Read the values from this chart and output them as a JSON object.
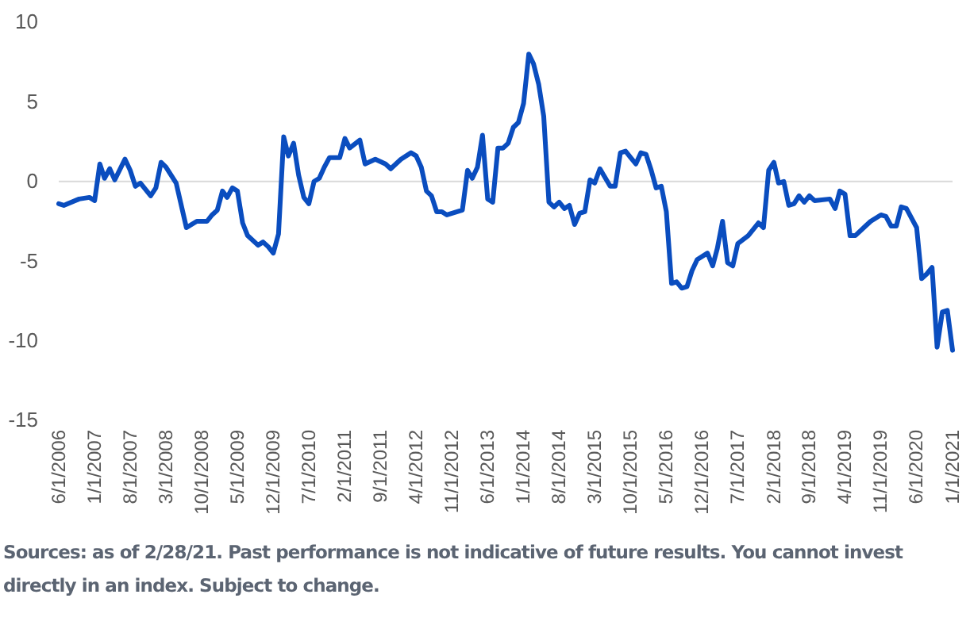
{
  "chart_data": {
    "type": "line",
    "x": [
      "2006-06",
      "2006-07",
      "2006-10",
      "2006-12",
      "2007-01",
      "2007-02",
      "2007-03",
      "2007-04",
      "2007-05",
      "2007-07",
      "2007-08",
      "2007-09",
      "2007-10",
      "2007-12",
      "2008-01",
      "2008-02",
      "2008-03",
      "2008-05",
      "2008-07",
      "2008-08",
      "2008-09",
      "2008-11",
      "2008-12",
      "2009-01",
      "2009-02",
      "2009-03",
      "2009-04",
      "2009-05",
      "2009-06",
      "2009-07",
      "2009-09",
      "2009-10",
      "2009-11",
      "2009-12",
      "2010-01",
      "2010-02",
      "2010-03",
      "2010-04",
      "2010-05",
      "2010-06",
      "2010-07",
      "2010-08",
      "2010-09",
      "2010-10",
      "2010-11",
      "2011-01",
      "2011-02",
      "2011-03",
      "2011-05",
      "2011-06",
      "2011-08",
      "2011-10",
      "2011-11",
      "2012-01",
      "2012-03",
      "2012-04",
      "2012-05",
      "2012-06",
      "2012-07",
      "2012-08",
      "2012-09",
      "2012-10",
      "2013-01",
      "2013-02",
      "2013-03",
      "2013-04",
      "2013-05",
      "2013-06",
      "2013-07",
      "2013-08",
      "2013-09",
      "2013-10",
      "2013-11",
      "2013-12",
      "2014-01",
      "2014-02",
      "2014-03",
      "2014-04",
      "2014-05",
      "2014-06",
      "2014-07",
      "2014-08",
      "2014-09",
      "2014-10",
      "2014-11",
      "2014-12",
      "2015-01",
      "2015-02",
      "2015-03",
      "2015-04",
      "2015-06",
      "2015-07",
      "2015-08",
      "2015-09",
      "2015-10",
      "2015-11",
      "2015-12",
      "2016-01",
      "2016-02",
      "2016-03",
      "2016-04",
      "2016-05",
      "2016-06",
      "2016-07",
      "2016-08",
      "2016-09",
      "2016-10",
      "2016-11",
      "2017-01",
      "2017-02",
      "2017-03",
      "2017-04",
      "2017-05",
      "2017-06",
      "2017-07",
      "2017-09",
      "2017-11",
      "2017-12",
      "2018-01",
      "2018-02",
      "2018-03",
      "2018-04",
      "2018-05",
      "2018-06",
      "2018-07",
      "2018-08",
      "2018-09",
      "2018-10",
      "2019-01",
      "2019-02",
      "2019-03",
      "2019-04",
      "2019-05",
      "2019-06",
      "2019-08",
      "2019-09",
      "2019-11",
      "2019-12",
      "2020-01",
      "2020-02",
      "2020-03",
      "2020-04",
      "2020-06",
      "2020-07",
      "2020-08",
      "2020-09",
      "2020-10",
      "2020-11",
      "2020-12",
      "2021-01"
    ],
    "series": [
      {
        "color": "#0a4dbf",
        "values": [
          -1.4,
          -1.5,
          -1.1,
          -1.0,
          -1.2,
          1.1,
          0.2,
          0.8,
          0.1,
          1.4,
          0.7,
          -0.3,
          -0.1,
          -0.9,
          -0.4,
          1.2,
          0.9,
          -0.1,
          -2.9,
          -2.7,
          -2.5,
          -2.5,
          -2.1,
          -1.8,
          -0.6,
          -1.0,
          -0.4,
          -0.6,
          -2.6,
          -3.4,
          -4.0,
          -3.8,
          -4.1,
          -4.5,
          -3.3,
          2.8,
          1.6,
          2.4,
          0.4,
          -1.0,
          -1.4,
          0.0,
          0.2,
          0.9,
          1.5,
          1.5,
          2.7,
          2.1,
          2.6,
          1.1,
          1.4,
          1.1,
          0.8,
          1.4,
          1.8,
          1.6,
          0.9,
          -0.6,
          -0.9,
          -1.9,
          -1.9,
          -2.1,
          -1.8,
          0.7,
          0.2,
          0.9,
          2.9,
          -1.1,
          -1.3,
          2.1,
          2.1,
          2.4,
          3.4,
          3.7,
          4.9,
          8.0,
          7.4,
          6.1,
          4.1,
          -1.3,
          -1.6,
          -1.3,
          -1.7,
          -1.5,
          -2.7,
          -2.0,
          -1.9,
          0.1,
          -0.1,
          0.8,
          -0.3,
          -0.3,
          1.8,
          1.9,
          1.5,
          1.1,
          1.8,
          1.7,
          0.7,
          -0.4,
          -0.3,
          -1.9,
          -6.4,
          -6.3,
          -6.7,
          -6.6,
          -5.6,
          -4.9,
          -4.5,
          -5.3,
          -4.2,
          -2.5,
          -5.1,
          -5.3,
          -3.9,
          -3.4,
          -2.6,
          -2.9,
          0.7,
          1.2,
          -0.1,
          0.0,
          -1.5,
          -1.4,
          -0.9,
          -1.3,
          -0.9,
          -1.2,
          -1.1,
          -1.7,
          -0.6,
          -0.8,
          -3.4,
          -3.4,
          -2.8,
          -2.5,
          -2.1,
          -2.2,
          -2.8,
          -2.8,
          -1.6,
          -1.7,
          -2.9,
          -6.1,
          -5.8,
          -5.4,
          -10.4,
          -8.2,
          -8.1,
          -10.6
        ]
      }
    ],
    "xlim": [
      "2006-06",
      "2021-01"
    ],
    "xticks": [
      {
        "value": "2006-06",
        "label": "6/1/2006"
      },
      {
        "value": "2007-01",
        "label": "1/1/2007"
      },
      {
        "value": "2007-08",
        "label": "8/1/2007"
      },
      {
        "value": "2008-03",
        "label": "3/1/2008"
      },
      {
        "value": "2008-10",
        "label": "10/1/2008"
      },
      {
        "value": "2009-05",
        "label": "5/1/2009"
      },
      {
        "value": "2009-12",
        "label": "12/1/2009"
      },
      {
        "value": "2010-07",
        "label": "7/1/2010"
      },
      {
        "value": "2011-02",
        "label": "2/1/2011"
      },
      {
        "value": "2011-09",
        "label": "9/1/2011"
      },
      {
        "value": "2012-04",
        "label": "4/1/2012"
      },
      {
        "value": "2012-11",
        "label": "11/1/2012"
      },
      {
        "value": "2013-06",
        "label": "6/1/2013"
      },
      {
        "value": "2014-01",
        "label": "1/1/2014"
      },
      {
        "value": "2014-08",
        "label": "8/1/2014"
      },
      {
        "value": "2015-03",
        "label": "3/1/2015"
      },
      {
        "value": "2015-10",
        "label": "10/1/2015"
      },
      {
        "value": "2016-05",
        "label": "5/1/2016"
      },
      {
        "value": "2016-12",
        "label": "12/1/2016"
      },
      {
        "value": "2017-07",
        "label": "7/1/2017"
      },
      {
        "value": "2018-02",
        "label": "2/1/2018"
      },
      {
        "value": "2018-09",
        "label": "9/1/2018"
      },
      {
        "value": "2019-04",
        "label": "4/1/2019"
      },
      {
        "value": "2019-11",
        "label": "11/1/2019"
      },
      {
        "value": "2020-06",
        "label": "6/1/2020"
      },
      {
        "value": "2021-01",
        "label": "1/1/2021"
      }
    ],
    "ylim": [
      -15,
      10
    ],
    "yticks": [
      -15,
      -10,
      -5,
      0,
      5,
      10
    ],
    "marker": "none",
    "line_style": "solid",
    "grid": false,
    "ref_lines": [
      {
        "axis": "y",
        "value": 0,
        "color": "#d9d9d9"
      }
    ],
    "annotations": [
      "Sources: as of 2/28/21. Past performance is not indicative of future results. You cannot invest directly in an index. Subject to change."
    ]
  }
}
